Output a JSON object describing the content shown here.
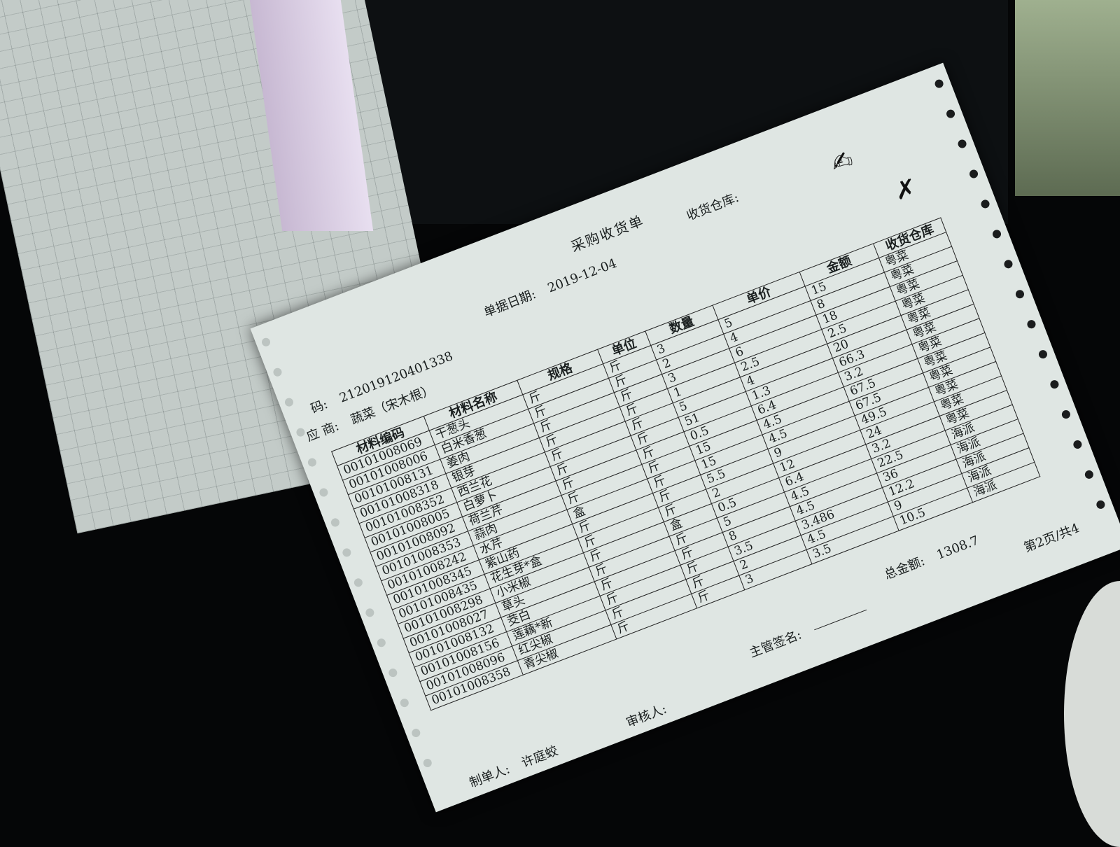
{
  "document": {
    "title": "采购收货单",
    "date_label": "单据日期:",
    "date": "2019-12-04",
    "warehouse_label": "收货仓库:",
    "code_label": "码:",
    "code": "212019120401338",
    "supplier_label": "应 商:",
    "supplier": "蔬菜（宋木根）",
    "columns": [
      "材料编码",
      "材料名称",
      "规格",
      "单位",
      "数量",
      "单价",
      "金额",
      "收货仓库"
    ],
    "rows": [
      [
        "00101008069",
        "干葱头",
        "斤",
        "斤",
        "3",
        "5",
        "15",
        "粤菜"
      ],
      [
        "00101008006",
        "白米香葱",
        "斤",
        "斤",
        "2",
        "4",
        "8",
        "粤菜"
      ],
      [
        "00101008131",
        "姜肉",
        "斤",
        "斤",
        "3",
        "6",
        "18",
        "粤菜"
      ],
      [
        "00101008318",
        "银芽",
        "斤",
        "斤",
        "1",
        "2.5",
        "2.5",
        "粤菜"
      ],
      [
        "00101008352",
        "西兰花",
        "斤",
        "斤",
        "5",
        "4",
        "20",
        "粤菜"
      ],
      [
        "00101008005",
        "白萝卜",
        "斤",
        "斤",
        "51",
        "1.3",
        "66.3",
        "粤菜"
      ],
      [
        "00101008092",
        "荷兰芹",
        "斤",
        "斤",
        "0.5",
        "6.4",
        "3.2",
        "粤菜"
      ],
      [
        "00101008353",
        "蒜肉",
        "斤",
        "斤",
        "15",
        "4.5",
        "67.5",
        "粤菜"
      ],
      [
        "00101008242",
        "水芹",
        "盒",
        "斤",
        "15",
        "4.5",
        "67.5",
        "粤菜"
      ],
      [
        "00101008345",
        "紫山药",
        "斤",
        "斤",
        "5.5",
        "9",
        "49.5",
        "粤菜"
      ],
      [
        "00101008435",
        "花生芽*盒",
        "斤",
        "斤",
        "2",
        "12",
        "24",
        "粤菜"
      ],
      [
        "00101008298",
        "小米椒",
        "斤",
        "盒",
        "0.5",
        "6.4",
        "3.2",
        "粤菜"
      ],
      [
        "00101008027",
        "草头",
        "斤",
        "斤",
        "5",
        "4.5",
        "22.5",
        "海派"
      ],
      [
        "00101008132",
        "茭白",
        "斤",
        "斤",
        "8",
        "4.5",
        "36",
        "海派"
      ],
      [
        "00101008156",
        "莲藕*新",
        "斤",
        "斤",
        "3.5",
        "3.486",
        "12.2",
        "海派"
      ],
      [
        "00101008096",
        "红尖椒",
        "斤",
        "斤",
        "2",
        "4.5",
        "9",
        "海派"
      ],
      [
        "00101008358",
        "青尖椒",
        "斤",
        "斤",
        "3",
        "3.5",
        "10.5",
        "海派"
      ]
    ],
    "total_label": "总金额:",
    "total": "1308.7",
    "supervisor_label": "主管签名:",
    "reviewer_label": "审核人:",
    "creator_label": "制单人:",
    "creator": "许庭蛟",
    "page": "第2页/共4"
  },
  "colors": {
    "paper": "#dfe6e3",
    "background": "#050607",
    "ink": "#1a1f1f"
  }
}
